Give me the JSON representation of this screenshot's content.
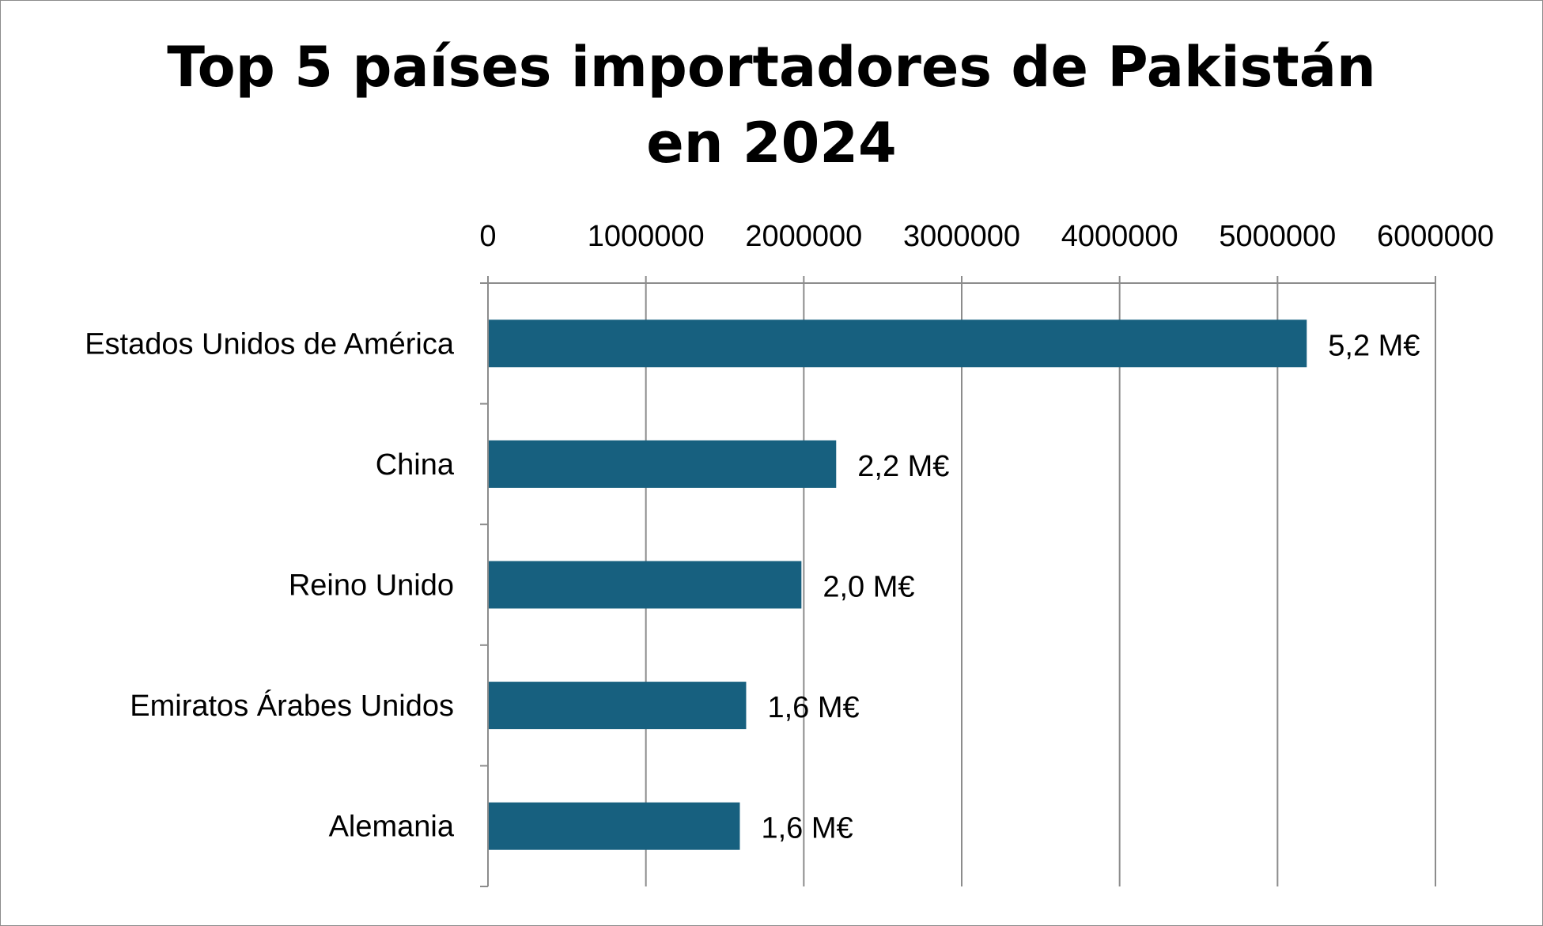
{
  "chart_data": {
    "type": "bar",
    "orientation": "horizontal",
    "title": "Top 5 países importadores de Pakistán en 2024",
    "title_lines": [
      "Top 5 países importadores de Pakistán",
      "en 2024"
    ],
    "categories": [
      "Estados Unidos de América",
      "China",
      "Reino Unido",
      "Emiratos Árabes Unidos",
      "Alemania"
    ],
    "values": [
      5180000,
      2200000,
      1980000,
      1630000,
      1590000
    ],
    "data_labels": [
      "5,2 M€",
      "2,2 M€",
      "2,0 M€",
      "1,6 M€",
      "1,6 M€"
    ],
    "xlim": [
      0,
      6000000
    ],
    "x_ticks": [
      0,
      1000000,
      2000000,
      3000000,
      4000000,
      5000000,
      6000000
    ],
    "x_tick_labels": [
      "0",
      "1000000",
      "2000000",
      "3000000",
      "4000000",
      "5000000",
      "6000000"
    ],
    "x_axis_position": "top",
    "grid": true,
    "legend": "none",
    "bar_color": "#17607f",
    "grid_color": "#8c8c8c"
  }
}
